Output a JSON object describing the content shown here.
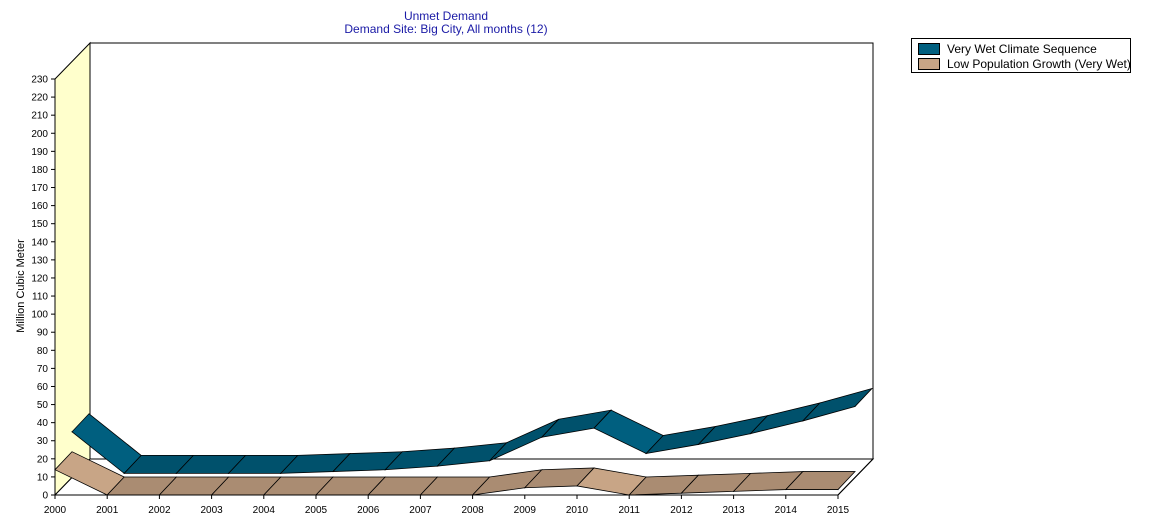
{
  "chart_data": {
    "type": "area",
    "title": "Unmet Demand",
    "subtitle": "Demand Site: Big City,  All months (12)",
    "ylabel": "Million Cubic Meter",
    "xlabel": "",
    "ylim": [
      0,
      230
    ],
    "ytick_step": 10,
    "categories": [
      "2000",
      "2001",
      "2002",
      "2003",
      "2004",
      "2005",
      "2006",
      "2007",
      "2008",
      "2009",
      "2010",
      "2011",
      "2012",
      "2013",
      "2014",
      "2015"
    ],
    "series": [
      {
        "name": "Very Wet Climate Sequence",
        "color": "#005f7f",
        "values": [
          25,
          2,
          2,
          2,
          2,
          3,
          4,
          6,
          9,
          22,
          27,
          13,
          18,
          24,
          31,
          39
        ]
      },
      {
        "name": "Low Population Growth (Very Wet)",
        "color": "#c8a586",
        "values": [
          14,
          0,
          0,
          0,
          0,
          0,
          0,
          0,
          0,
          4,
          5,
          0,
          1,
          2,
          3,
          3
        ]
      }
    ],
    "grid": false,
    "legend_position": "top-right"
  }
}
